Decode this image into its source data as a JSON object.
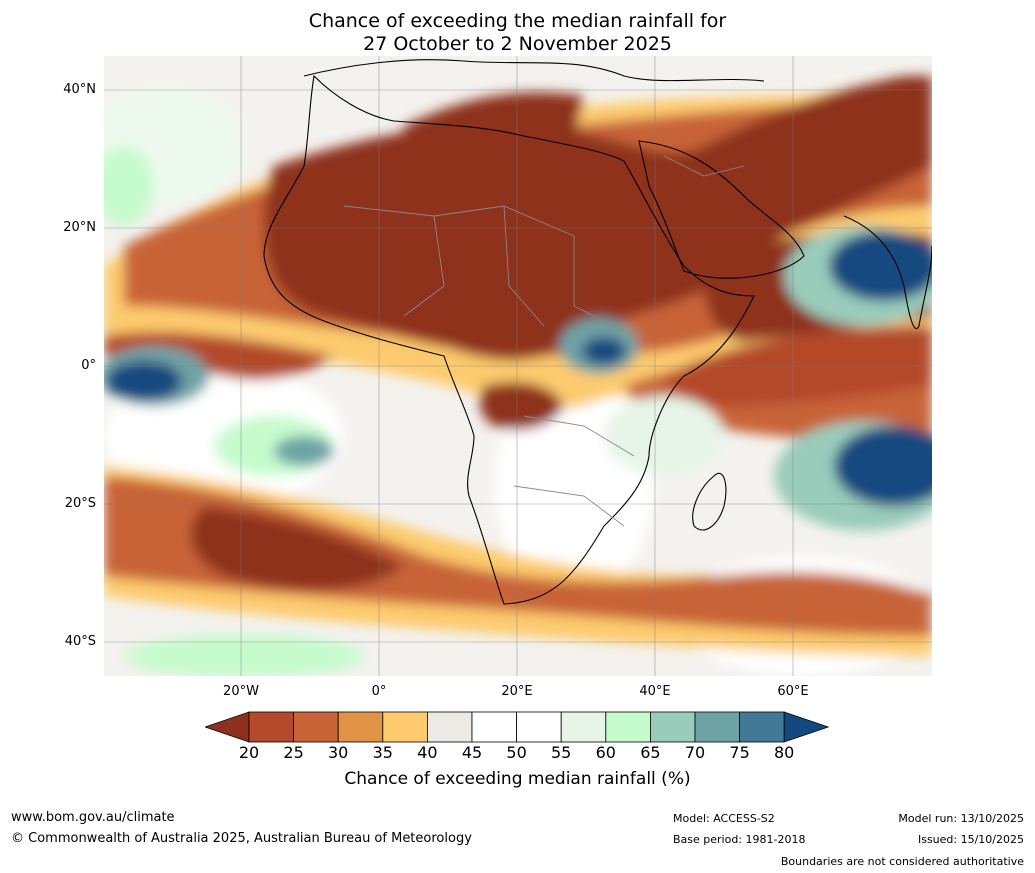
{
  "title_line1": "Chance of exceeding the median rainfall for",
  "title_line2": "27 October to 2 November 2025",
  "map": {
    "lat_labels": [
      "40°N",
      "20°N",
      "0°",
      "20°S",
      "40°S"
    ],
    "lon_labels": [
      "20°W",
      "0°",
      "20°E",
      "40°E",
      "60°E"
    ]
  },
  "colorbar": {
    "ticks": [
      "20",
      "25",
      "30",
      "35",
      "40",
      "45",
      "50",
      "55",
      "60",
      "65",
      "70",
      "75",
      "80"
    ],
    "colors": [
      "#8e301d",
      "#b4492b",
      "#c86437",
      "#e09245",
      "#fdcb6e",
      "#ede9e4",
      "#ffffff",
      "#ffffff",
      "#e6f5e8",
      "#c6fbcd",
      "#9accbb",
      "#6ea3a6",
      "#427a96",
      "#12497f"
    ],
    "label": "Chance of exceeding median rainfall (%)"
  },
  "footer": {
    "website": "www.bom.gov.au/climate",
    "copyright": "© Commonwealth of Australia 2025, Australian Bureau of Meteorology",
    "model": "Model: ACCESS-S2",
    "base_period": "Base period: 1981-2018",
    "model_run": "Model run: 13/10/2025",
    "issued": "Issued: 15/10/2025",
    "disclaimer": "Boundaries are not considered authoritative"
  }
}
